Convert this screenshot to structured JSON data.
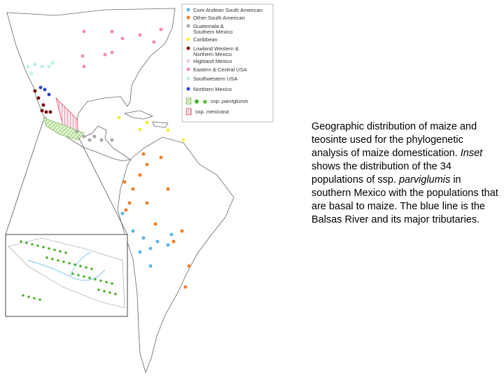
{
  "legend": {
    "items": [
      {
        "label": "Core Andean South American",
        "color": "#5bb8e6"
      },
      {
        "label": "Other South American",
        "color": "#f07f2a"
      },
      {
        "label": "Guatemala & Southern Mexico",
        "color": "#a8a8a8"
      },
      {
        "label": "Caribbean",
        "color": "#f5ee3a"
      },
      {
        "label": "Lowland Western & Northern Mexico",
        "color": "#7a0f10"
      },
      {
        "label": "Highland Mexico",
        "color": "#f2c4e6"
      },
      {
        "label": "Eastern & Central USA",
        "color": "#f28ab8"
      },
      {
        "label": "Southwestern USA",
        "color": "#b8f2e2"
      },
      {
        "label": "Northern Mexico",
        "color": "#2a46c2"
      }
    ],
    "parviglumis": {
      "prefix": "ssp.",
      "name": "parviglumis"
    },
    "mexicana": {
      "prefix": "ssp.",
      "name": "mexicana"
    }
  },
  "caption": {
    "parts": [
      "Geographic distribution of maize and teosinte used for the phylogenetic analysis of maize domestication. ",
      "Inset",
      " shows the distribution of the 34 populations of ssp. ",
      "parviglumis",
      " in southern Mexico with the populations that are basal to maize. The blue line is the Balsas River and its major tributaries."
    ]
  }
}
